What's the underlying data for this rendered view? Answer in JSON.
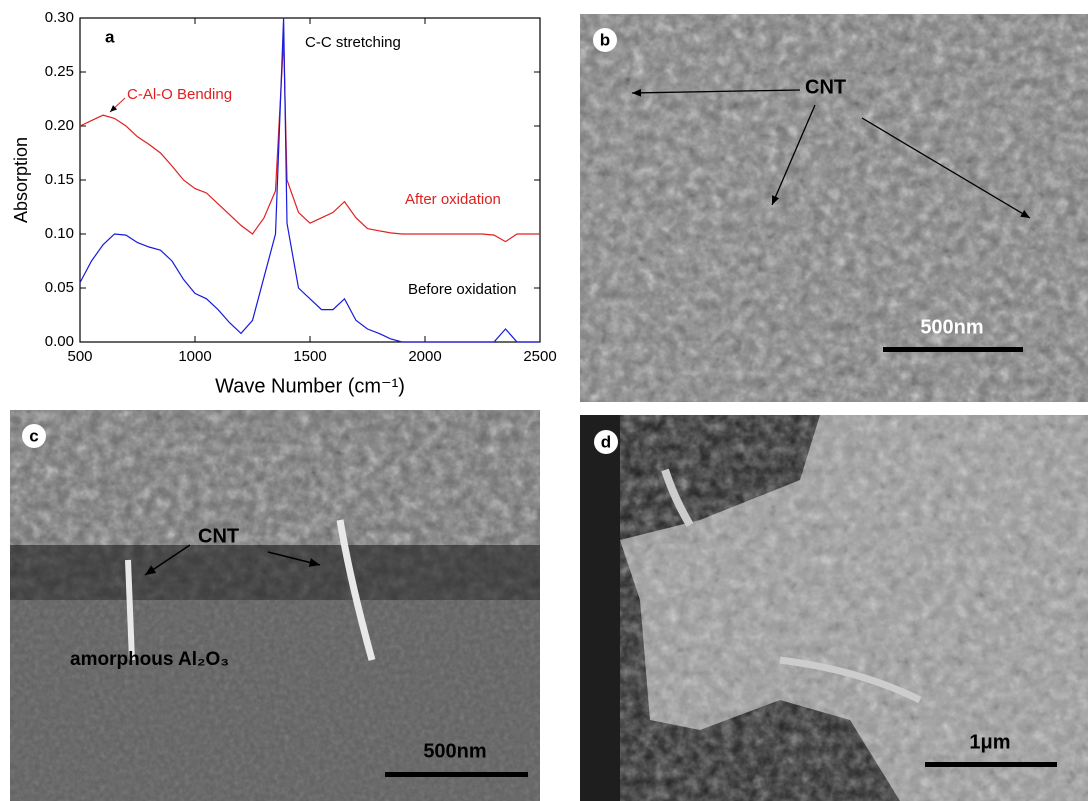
{
  "chart_data": {
    "type": "line",
    "panel_label": "a",
    "x_label": "Wave Number (cm⁻¹)",
    "y_label": "Absorption",
    "annotations": [
      "C-C stretching",
      "C-Al-O Bending"
    ],
    "x": [
      500,
      550,
      600,
      650,
      700,
      750,
      800,
      850,
      900,
      950,
      1000,
      1050,
      1100,
      1150,
      1200,
      1250,
      1300,
      1350,
      1385,
      1400,
      1450,
      1500,
      1550,
      1600,
      1650,
      1700,
      1750,
      1800,
      1850,
      1900,
      1950,
      2000,
      2050,
      2100,
      2150,
      2200,
      2250,
      2300,
      2350,
      2400,
      2450,
      2500
    ],
    "series": [
      {
        "name": "After oxidation",
        "color": "#e02020",
        "values": [
          0.2,
          0.205,
          0.21,
          0.207,
          0.2,
          0.19,
          0.183,
          0.175,
          0.163,
          0.15,
          0.142,
          0.138,
          0.128,
          0.118,
          0.108,
          0.1,
          0.115,
          0.14,
          0.28,
          0.15,
          0.12,
          0.11,
          0.115,
          0.12,
          0.13,
          0.115,
          0.105,
          0.103,
          0.101,
          0.1,
          0.1,
          0.1,
          0.1,
          0.1,
          0.1,
          0.1,
          0.1,
          0.099,
          0.093,
          0.1,
          0.1,
          0.1
        ]
      },
      {
        "name": "Before oxidation",
        "color": "#1a1adc",
        "values": [
          0.055,
          0.075,
          0.09,
          0.1,
          0.099,
          0.092,
          0.088,
          0.085,
          0.075,
          0.058,
          0.045,
          0.04,
          0.03,
          0.018,
          0.008,
          0.02,
          0.06,
          0.1,
          0.3,
          0.11,
          0.05,
          0.04,
          0.03,
          0.03,
          0.04,
          0.02,
          0.012,
          0.008,
          0.003,
          0,
          0,
          0,
          0,
          0,
          0,
          0,
          0,
          0,
          0.012,
          0,
          0,
          0
        ]
      }
    ],
    "xlim": [
      500,
      2500
    ],
    "xticks": [
      500,
      1000,
      1500,
      2000,
      2500
    ],
    "ylim": [
      0,
      0.3
    ],
    "yticks": [
      {
        "value": 0,
        "label": "0.00"
      },
      {
        "value": 0.05,
        "label": "0.05"
      },
      {
        "value": 0.1,
        "label": "0.10"
      },
      {
        "value": 0.15,
        "label": "0.15"
      },
      {
        "value": 0.2,
        "label": "0.20"
      },
      {
        "value": 0.25,
        "label": "0.25"
      },
      {
        "value": 0.3,
        "label": "0.30"
      }
    ]
  },
  "panels": [
    {
      "label": "b",
      "annotation": "CNT",
      "scale_bar": "500nm"
    },
    {
      "label": "c",
      "annotation": "CNT",
      "material": "amorphous Al₂O₃",
      "scale_bar": "500nm"
    },
    {
      "label": "d",
      "scale_bar": "1μm"
    }
  ]
}
